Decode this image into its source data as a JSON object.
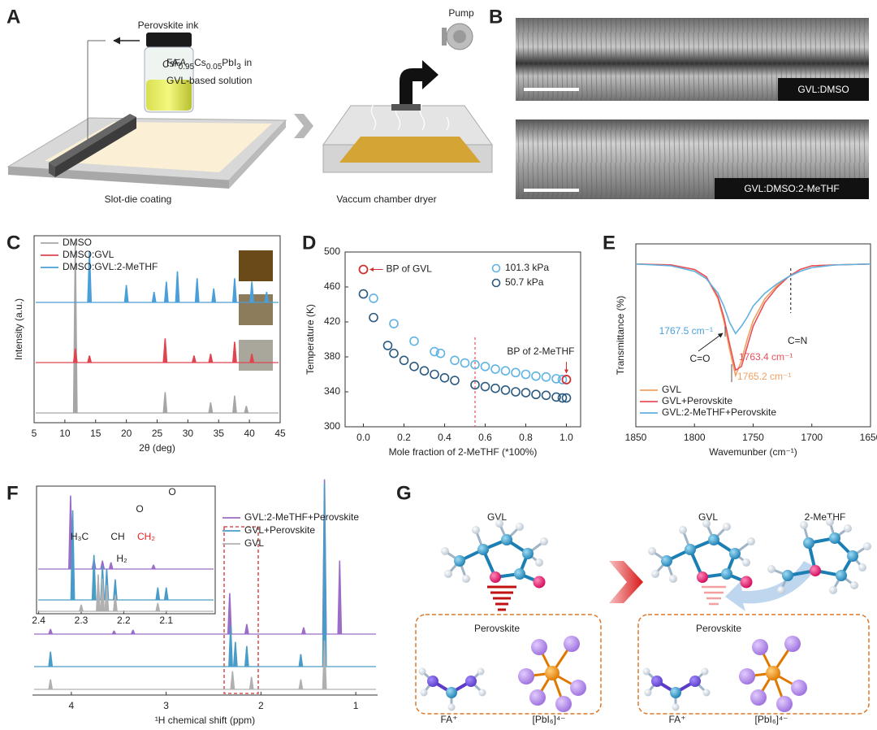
{
  "panel_labels": [
    "A",
    "B",
    "C",
    "D",
    "E",
    "F",
    "G"
  ],
  "panel_a": {
    "ink": "Perovskite ink",
    "formula": [
      "FA",
      "0.95",
      "Cs",
      "0.05",
      "PbI",
      "3"
    ],
    "formula_tail": "in",
    "solution": "GVL-based solution",
    "vial_label": "CsFA",
    "step1": "Slot-die coating",
    "pump": "Pump",
    "step2": "Vaccum chamber dryer"
  },
  "panel_b": {
    "labels": [
      "GVL:DMSO",
      "GVL:DMSO:2-MeTHF"
    ]
  },
  "chart_data": [
    {
      "type": "spectrum",
      "xlabel": "2θ (deg)",
      "ylabel": "Intensity (a.u.)",
      "xlim": [
        5,
        45
      ],
      "xticks": [
        5,
        10,
        15,
        20,
        25,
        30,
        35,
        40,
        45
      ],
      "series": [
        {
          "name": "DMSO",
          "color": "#a6a6a6",
          "x": [
            11.7,
            26.3,
            33.7,
            37.6,
            39.5
          ],
          "values": [
            100,
            12,
            6,
            10,
            4
          ]
        },
        {
          "name": "DMSO:GVL",
          "color": "#e0454f",
          "x": [
            11.7,
            14,
            26.3,
            31,
            33.7,
            37.6,
            40.4
          ],
          "values": [
            8,
            4,
            14,
            4,
            5,
            12,
            5
          ]
        },
        {
          "name": "DMSO:GVL:2-MeTHF",
          "color": "#4a9fd8",
          "x": [
            14,
            20,
            24.5,
            26.5,
            28.3,
            31.5,
            34.2,
            37.6,
            40.4,
            42.8
          ],
          "values": [
            30,
            10,
            6,
            12,
            18,
            14,
            8,
            14,
            12,
            6
          ]
        }
      ]
    },
    {
      "type": "scatter",
      "xlabel": "Mole fraction of 2-MeTHF (*100%)",
      "ylabel": "Temperature (K)",
      "xlim": [
        -0.09,
        1.07
      ],
      "ylim": [
        300,
        500
      ],
      "xticks": [
        {
          "value": 0,
          "label": "0.0"
        },
        0.2,
        0.4,
        0.6,
        0.8,
        {
          "value": 1,
          "label": "1.0"
        }
      ],
      "yticks": [
        300,
        340,
        380,
        420,
        460,
        500
      ],
      "series": [
        {
          "name": "101.3 kPa",
          "color": "#5fb3e4",
          "x": [
            0.05,
            0.15,
            0.25,
            0.35,
            0.38,
            0.45,
            0.5,
            0.55,
            0.6,
            0.65,
            0.7,
            0.75,
            0.8,
            0.85,
            0.9,
            0.95,
            0.98
          ],
          "values": [
            447,
            418,
            398,
            386,
            384,
            376,
            373,
            371,
            369,
            366,
            364,
            362,
            360,
            358,
            357,
            355,
            354
          ]
        },
        {
          "name": "50.7 kPa",
          "color": "#2b5a80",
          "x": [
            0,
            0.05,
            0.12,
            0.15,
            0.2,
            0.25,
            0.3,
            0.35,
            0.4,
            0.45,
            0.55,
            0.6,
            0.65,
            0.7,
            0.75,
            0.8,
            0.85,
            0.9,
            0.95,
            0.98,
            1
          ],
          "values": [
            452,
            425,
            393,
            384,
            376,
            369,
            364,
            360,
            356,
            353,
            348,
            346,
            344,
            342,
            340,
            339,
            337,
            336,
            334,
            333,
            333
          ]
        }
      ],
      "annotations": [
        {
          "text": "BP of GVL",
          "x": 0,
          "y": 480,
          "color": "#d03030"
        },
        {
          "text": "BP of 2-MeTHF",
          "x": 1,
          "y": 354,
          "color": "#d03030"
        }
      ],
      "vline": {
        "x": 0.55,
        "color": "#e05050"
      }
    },
    {
      "type": "line",
      "xlabel": "Wavemunber (cm⁻¹)",
      "ylabel": "Transmittance (%)",
      "xlim": [
        1850,
        1650
      ],
      "xticks": [
        1850,
        1800,
        1750,
        1700,
        1650
      ],
      "ylim": [
        0,
        100
      ],
      "x": [
        1850,
        1820,
        1800,
        1790,
        1780,
        1775,
        1770,
        1765,
        1760,
        1755,
        1750,
        1740,
        1730,
        1720,
        1710,
        1700,
        1680,
        1650
      ],
      "series": [
        {
          "name": "GVL",
          "color": "#f0a060",
          "values": [
            89,
            88.5,
            86,
            82,
            70,
            58,
            42,
            28,
            36,
            48,
            58,
            70,
            77,
            82,
            86,
            88,
            88.5,
            89
          ]
        },
        {
          "name": "GVL+Perovskite",
          "color": "#e8505a",
          "values": [
            89,
            88.5,
            86,
            82,
            71,
            60,
            45,
            31,
            33,
            44,
            55,
            68,
            76,
            82,
            86,
            88,
            88.5,
            89
          ]
        },
        {
          "name": "GVL:2-MeTHF+Perovskite",
          "color": "#60b0e0",
          "values": [
            89,
            88,
            85,
            81,
            73,
            66,
            57,
            51,
            55,
            60,
            66,
            73,
            78,
            82,
            85,
            87,
            88.5,
            89
          ]
        }
      ],
      "annotations": [
        {
          "text": "1767.5 cm⁻¹",
          "color": "#4aa0d8"
        },
        {
          "text": "C=O",
          "color": "#222222"
        },
        {
          "text": "1763.4 cm⁻¹",
          "color": "#e8505a"
        },
        {
          "text": "1765.2 cm⁻¹",
          "color": "#f0a060"
        },
        {
          "text": "C=N",
          "color": "#222222"
        }
      ],
      "vline": {
        "x": 1718,
        "color": "#333333"
      }
    },
    {
      "type": "spectrum",
      "xlabel": "¹H chemical shift (ppm)",
      "xlim": [
        4.41,
        0.77
      ],
      "xticks": [
        4,
        3,
        2,
        1
      ],
      "series": [
        {
          "name": "GVL:2-MeTHF+Perovskite",
          "color": "#9b6cc8",
          "x": [
            4.22,
            3.55,
            3.35,
            2.33,
            2.15,
            1.55,
            1.33,
            1.17
          ],
          "values": [
            6,
            4,
            5,
            50,
            12,
            8,
            190,
            90
          ]
        },
        {
          "name": "GVL+Perovskite",
          "color": "#4a9cc8",
          "x": [
            4.22,
            2.32,
            2.27,
            2.15,
            1.58,
            1.33
          ],
          "values": [
            18,
            50,
            30,
            25,
            15,
            225
          ]
        },
        {
          "name": "GVL",
          "color": "#b0b0b0",
          "x": [
            4.22,
            2.3,
            2.1,
            1.58,
            1.33
          ],
          "values": [
            12,
            22,
            15,
            12,
            60
          ]
        }
      ]
    },
    {
      "type": "spectrum",
      "xlim": [
        2.405,
        1.985
      ],
      "xticks": [
        2.4,
        2.3,
        2.2,
        2.1
      ],
      "series": [
        {
          "color": "#9b6cc8",
          "x": [
            2.325,
            2.27,
            2.25,
            2.23,
            2.13
          ],
          "values": [
            90,
            12,
            10,
            8,
            5
          ]
        },
        {
          "color": "#4a9cc8",
          "x": [
            2.32,
            2.27,
            2.25,
            2.24,
            2.22,
            2.12,
            2.1
          ],
          "values": [
            110,
            55,
            42,
            38,
            25,
            15,
            15
          ]
        },
        {
          "color": "#b0b0b0",
          "x": [
            2.3,
            2.26,
            2.25,
            2.24,
            2.22,
            2.12
          ],
          "values": [
            8,
            45,
            40,
            32,
            20,
            10
          ]
        }
      ],
      "molecule_labels": [
        "O",
        "O",
        "H₃C",
        "CH",
        "CH₂",
        "H₂"
      ]
    }
  ],
  "panel_g": {
    "labels": [
      "GVL",
      "GVL",
      "2-MeTHF"
    ],
    "box_titles": [
      "Perovskite",
      "Perovskite"
    ],
    "ions": [
      "FA⁺",
      "[PbI₆]⁴⁻",
      "FA⁺",
      "[PbI₆]⁴⁻"
    ]
  }
}
